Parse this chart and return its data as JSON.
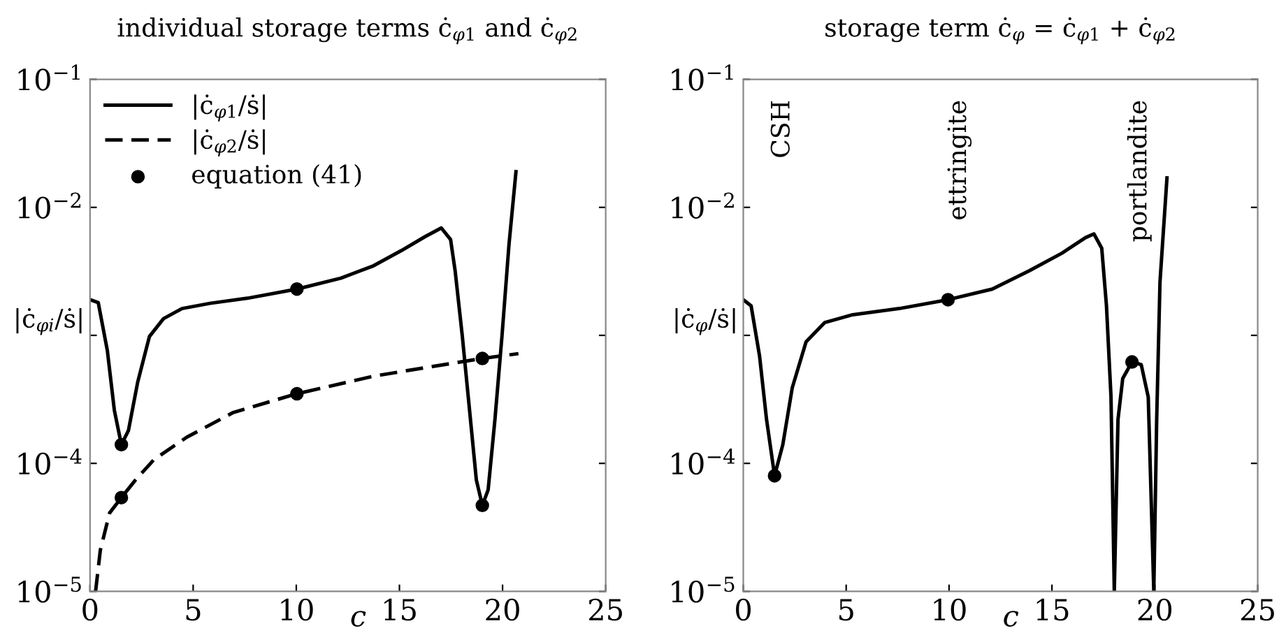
{
  "chart_data": [
    {
      "type": "line",
      "title": "individual storage terms ċ$_{φ1}$ and ċ$_{φ2}$",
      "xlabel": "c",
      "ylabel": "|ċ$_{φi}$/ṡ|",
      "log": "y",
      "xlim": [
        0,
        25
      ],
      "xticks": [
        0,
        5,
        10,
        15,
        20,
        25
      ],
      "ylim": [
        1e-05,
        0.1
      ],
      "yticks": [
        {
          "value": 1e-05,
          "label": "10$^{−5}$"
        },
        {
          "value": 0.0001,
          "label": "10$^{−4}$"
        },
        {
          "value": 0.001,
          "label": null
        },
        {
          "value": 0.01,
          "label": "10$^{−2}$"
        },
        {
          "value": 0.1,
          "label": "10$^{−1}$"
        }
      ],
      "grid": false,
      "legend": "top left",
      "series": [
        {
          "name": "|ċ$_{φ1}$/ṡ|",
          "color": "#000000",
          "line_style": "solid",
          "x": [
            0,
            0.4,
            0.84,
            1.18,
            1.52,
            1.86,
            2.31,
            2.88,
            3.56,
            4.46,
            5.82,
            7.63,
            10.03,
            12.16,
            13.75,
            15.1,
            16.24,
            17.03,
            17.48,
            17.7,
            18.05,
            18.4,
            18.73,
            19.02,
            19.3,
            19.63,
            19.97,
            20.31,
            20.65
          ],
          "values": [
            0.0019,
            0.0018,
            0.00076,
            0.00026,
            0.00014,
            0.00018,
            0.00043,
            0.00098,
            0.00135,
            0.00162,
            0.00178,
            0.00195,
            0.0023,
            0.0028,
            0.0035,
            0.0046,
            0.0059,
            0.0069,
            0.0056,
            0.0032,
            0.00098,
            0.00026,
            7.4e-05,
            4.7e-05,
            6.2e-05,
            0.00022,
            0.00098,
            0.0051,
            0.019
          ]
        },
        {
          "name": "|ċ$_{φ2}$/ṡ|",
          "color": "#000000",
          "line_style": "dashed",
          "x": [
            0.27,
            0.5,
            0.95,
            1.52,
            2.2,
            3.1,
            4.69,
            6.95,
            10.03,
            13.75,
            17.14,
            19.02,
            20.77
          ],
          "values": [
            1e-05,
            2.1e-05,
            4.1e-05,
            5.4e-05,
            7.4e-05,
            0.000107,
            0.00016,
            0.00025,
            0.00035,
            0.00048,
            0.00059,
            0.00066,
            0.00072
          ]
        },
        {
          "type": "scatter",
          "name": "equation (41)",
          "color": "#000000",
          "marker": "circle",
          "x": [
            1.52,
            10.03,
            19.02,
            1.52,
            10.03,
            19.02
          ],
          "values": [
            0.00014,
            0.0023,
            4.7e-05,
            5.4e-05,
            0.00035,
            0.00066
          ]
        }
      ]
    },
    {
      "type": "line",
      "title": "storage term ċ$_{φ}$ = ċ$_{φ1}$ + ċ$_{φ2}$",
      "xlabel": "c",
      "ylabel": "|ċ$_{φ}$/ṡ|",
      "log": "y",
      "xlim": [
        0,
        25
      ],
      "xticks": [
        0,
        5,
        10,
        15,
        20,
        25
      ],
      "ylim": [
        1e-05,
        0.1
      ],
      "yticks": [
        {
          "value": 1e-05,
          "label": "10$^{−5}$"
        },
        {
          "value": 0.0001,
          "label": "10$^{−4}$"
        },
        {
          "value": 0.001,
          "label": null
        },
        {
          "value": 0.01,
          "label": "10$^{−2}$"
        },
        {
          "value": 0.1,
          "label": "10$^{−1}$"
        }
      ],
      "grid": false,
      "legend": false,
      "annotations": [
        "CSH",
        "ettringite",
        "portlandite"
      ],
      "series": [
        {
          "color": "#000000",
          "line_style": "solid",
          "x": [
            0,
            0.38,
            0.79,
            1.13,
            1.52,
            1.92,
            2.38,
            3.05,
            3.96,
            5.32,
            7.58,
            9.95,
            12.1,
            13.9,
            15.5,
            16.63,
            17.04,
            17.42,
            17.65,
            17.87,
            18.03,
            18.21,
            18.44,
            18.89,
            19.34,
            19.68,
            19.95,
            20.09,
            20.25,
            20.59
          ],
          "values": [
            0.0019,
            0.0017,
            0.00069,
            0.00022,
            8e-05,
            0.00014,
            0.00039,
            0.00089,
            0.00126,
            0.00145,
            0.00162,
            0.0019,
            0.0023,
            0.0032,
            0.0044,
            0.0058,
            0.0062,
            0.0048,
            0.0017,
            0.00033,
            1e-05,
            0.00022,
            0.00046,
            0.00062,
            0.00059,
            0.00033,
            1e-05,
            0.00022,
            0.0026,
            0.017
          ]
        },
        {
          "type": "scatter",
          "color": "#000000",
          "marker": "circle",
          "x": [
            1.52,
            9.95,
            18.89
          ],
          "values": [
            8e-05,
            0.0019,
            0.00062
          ]
        }
      ]
    }
  ]
}
